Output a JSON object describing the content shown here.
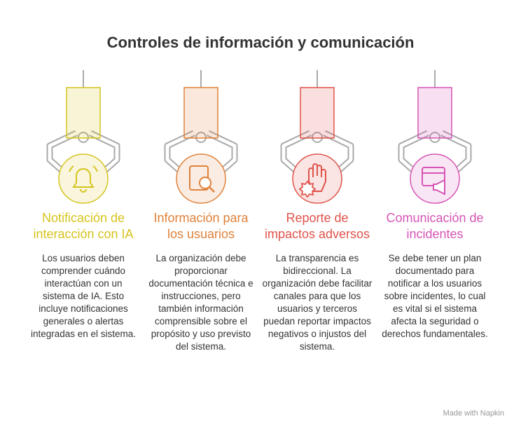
{
  "title": "Controles de información y comunicación",
  "items": [
    {
      "heading": "Notificación de interacción con IA",
      "color": "#d6c41e",
      "body": "Los usuarios deben comprender cuándo interactúan con un sistema de IA. Esto incluye notificaciones generales o alertas integradas en el sistema."
    },
    {
      "heading": "Información para los usuarios",
      "color": "#e0823a",
      "body": "La organización debe proporcionar documentación técnica e instrucciones, pero también información comprensible sobre el propósito y uso previsto del sistema."
    },
    {
      "heading": "Reporte de impactos adversos",
      "color": "#e0534b",
      "body": "La transparencia es bidireccional. La organización debe facilitar canales para que los usuarios y terceros puedan reportar impactos negativos o injustos del sistema."
    },
    {
      "heading": "Comunicación de incidentes",
      "color": "#d655b5",
      "body": "Se debe tener un plan documentado para notificar a los usuarios sobre incidentes, lo cual es vital si el sistema afecta la seguridad o derechos fundamentales."
    }
  ],
  "footer": "Made with Napkin"
}
